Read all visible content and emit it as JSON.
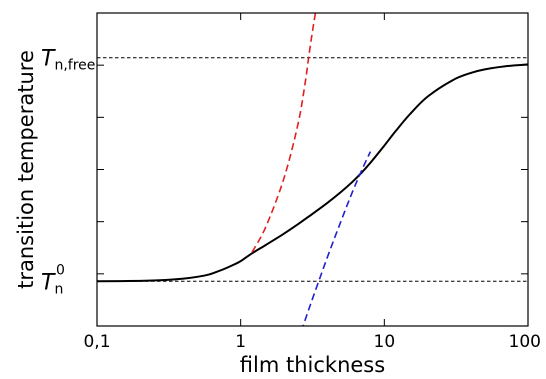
{
  "chart_data": {
    "type": "line",
    "xlabel": "film thickness",
    "ylabel": "transition temperature",
    "xscale": "log",
    "xlim": [
      0.1,
      100
    ],
    "ylim": [
      -0.2,
      1.2
    ],
    "x_ticks": [
      {
        "value": 0.1,
        "label": "0,1"
      },
      {
        "value": 1,
        "label": "1"
      },
      {
        "value": 10,
        "label": "10"
      },
      {
        "value": 100,
        "label": "100"
      }
    ],
    "reference_lines": [
      {
        "name_main": "T",
        "name_sub": "n,free",
        "name_sup": "",
        "y": 1.0,
        "style": "dashed",
        "color": "#000000"
      },
      {
        "name_main": "T",
        "name_sub": "n",
        "name_sup": "0",
        "y": 0.0,
        "style": "dashed",
        "color": "#000000"
      }
    ],
    "series": [
      {
        "color": "#000000",
        "style": "solid",
        "x": [
          0.1,
          0.2,
          0.3,
          0.4,
          0.5,
          0.6,
          0.7,
          0.8,
          0.9,
          1.0,
          1.2,
          1.5,
          2,
          2.5,
          3,
          4,
          5,
          6,
          7,
          8,
          10,
          12,
          15,
          20,
          30,
          40,
          50,
          70,
          100
        ],
        "y": [
          0.0,
          0.002,
          0.006,
          0.012,
          0.02,
          0.03,
          0.045,
          0.06,
          0.075,
          0.09,
          0.125,
          0.163,
          0.213,
          0.255,
          0.291,
          0.35,
          0.4,
          0.445,
          0.488,
          0.53,
          0.607,
          0.672,
          0.746,
          0.826,
          0.9,
          0.932,
          0.948,
          0.962,
          0.97
        ]
      },
      {
        "color": "#e02020",
        "style": "dashed",
        "x": [
          1.2,
          1.5,
          2.0,
          2.5,
          2.8,
          3.0,
          3.2,
          3.35
        ],
        "y": [
          0.13,
          0.245,
          0.46,
          0.7,
          0.88,
          1.02,
          1.14,
          1.22
        ]
      },
      {
        "color": "#2020d0",
        "style": "dashed",
        "x": [
          2.5,
          3.0,
          4.0,
          5.0,
          6.0,
          7.0,
          8.0
        ],
        "y": [
          -0.27,
          -0.12,
          0.105,
          0.27,
          0.4,
          0.5,
          0.58
        ]
      }
    ]
  }
}
